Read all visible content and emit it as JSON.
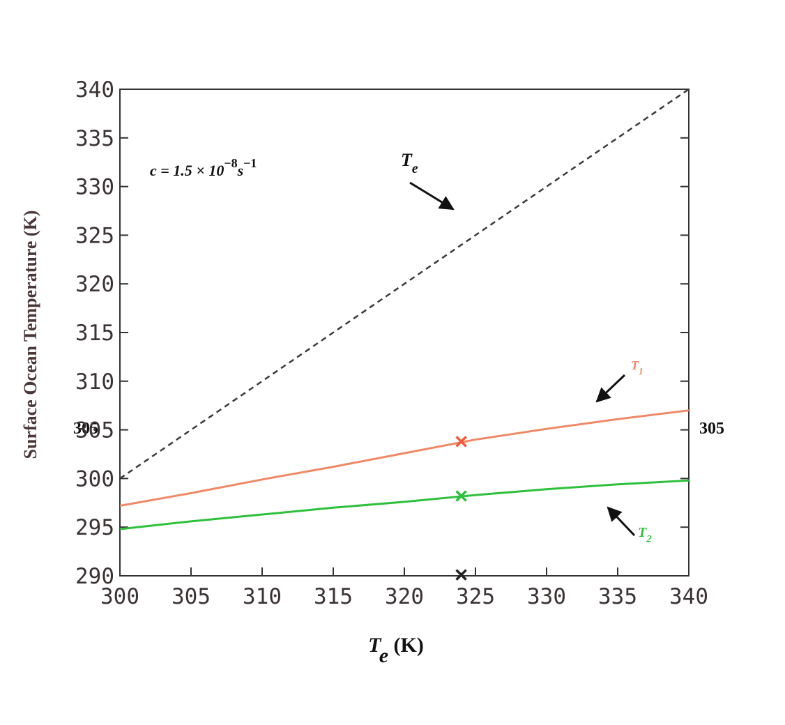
{
  "chart_data": {
    "type": "line",
    "xlabel": "Te (K)",
    "ylabel": "Surface Ocean Temperature (K)",
    "annotation": {
      "base": "c = 1.5 × 10",
      "exp1": "−8",
      "unit": "s",
      "exp2": "−1"
    },
    "side_labels": [
      "305",
      "305"
    ],
    "x": [
      300,
      305,
      310,
      315,
      320,
      325,
      330,
      335,
      340
    ],
    "series": [
      {
        "name": "Te",
        "color": "#3a3a3a",
        "dashed": true,
        "values": [
          300,
          305,
          310,
          315,
          320,
          325,
          330,
          335,
          340
        ]
      },
      {
        "name": "T1",
        "color": "#f08866",
        "dashed": false,
        "values": [
          297.2,
          298.5,
          299.9,
          301.2,
          302.6,
          304.0,
          305.1,
          306.1,
          307.0
        ]
      },
      {
        "name": "T2",
        "color": "#2ec03c",
        "dashed": false,
        "values": [
          294.8,
          295.6,
          296.3,
          297.0,
          297.6,
          298.3,
          298.9,
          299.4,
          299.8
        ]
      }
    ],
    "markers": [
      {
        "x": 324,
        "y": 303.8,
        "color": "#f05a3a"
      },
      {
        "x": 324,
        "y": 298.2,
        "color": "#2ec03c"
      },
      {
        "x": 324,
        "y": 290.1,
        "color": "#222222"
      }
    ],
    "xlim": [
      300,
      340
    ],
    "ylim": [
      290,
      340
    ],
    "xticks": [
      300,
      305,
      310,
      315,
      320,
      325,
      330,
      335,
      340
    ],
    "yticks": [
      290,
      295,
      300,
      305,
      310,
      315,
      320,
      325,
      330,
      335,
      340
    ]
  }
}
